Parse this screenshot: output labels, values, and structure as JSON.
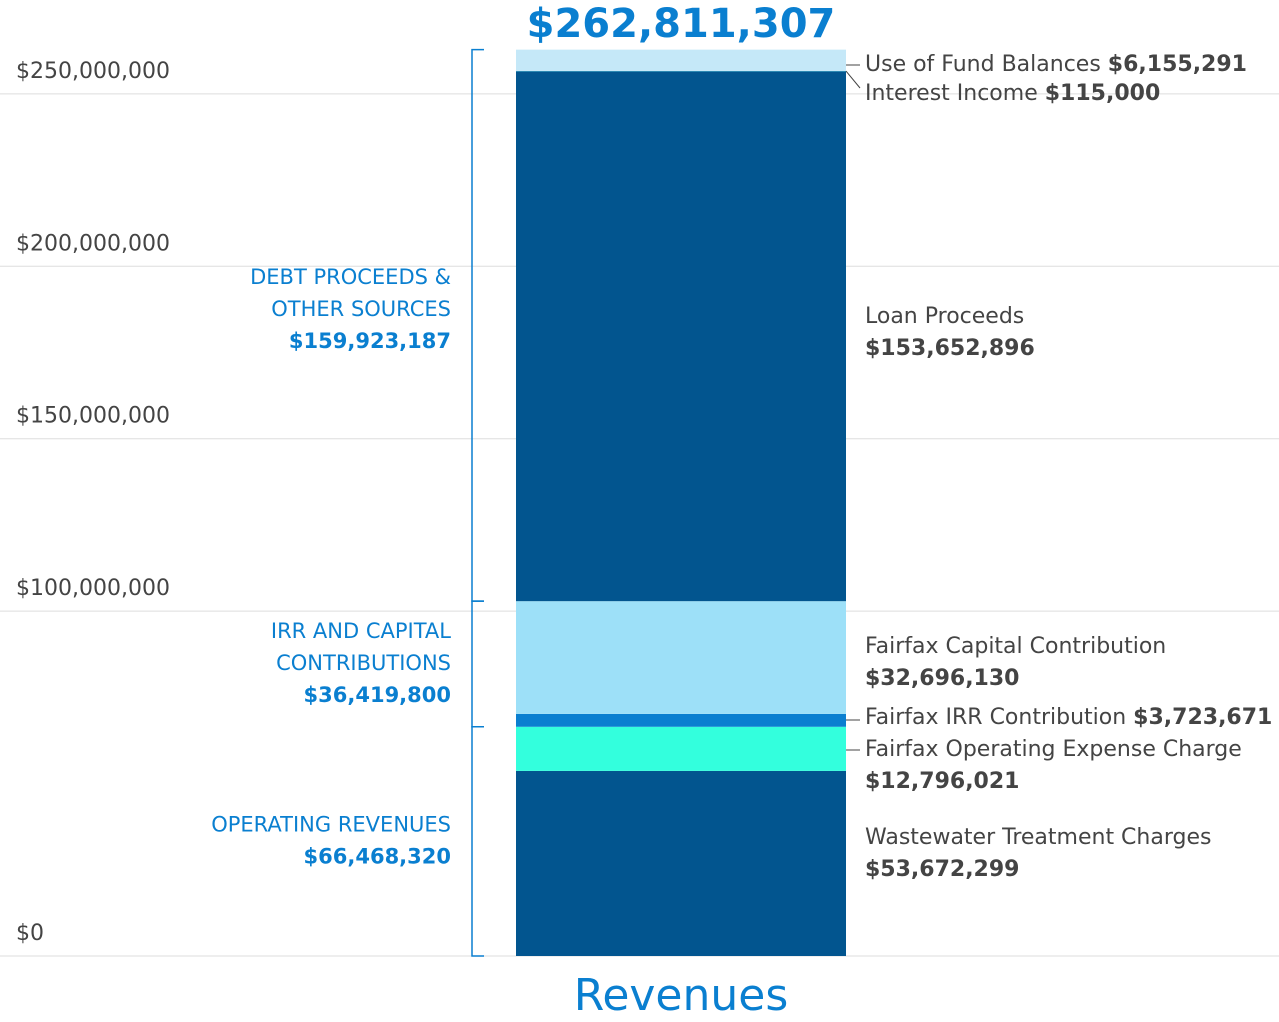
{
  "chart_data": {
    "type": "stacked_bar",
    "total_label": "$262,811,307",
    "categories": [
      "Revenues"
    ],
    "ylim": [
      0,
      263000000
    ],
    "yticks": [
      {
        "value": 0,
        "label": "$0"
      },
      {
        "value": 100000000,
        "label": "$100,000,000"
      },
      {
        "value": 150000000,
        "label": "$150,000,000"
      },
      {
        "value": 200000000,
        "label": "$200,000,000"
      },
      {
        "value": 250000000,
        "label": "$250,000,000"
      }
    ],
    "grid": true,
    "series": [
      {
        "name": "Wastewater Treatment Charges",
        "color": "#02558f",
        "values": [
          53672299
        ],
        "value_labels": [
          "$53,672,299"
        ]
      },
      {
        "name": "Fairfax Operating Expense Charge",
        "color": "#33ffdd",
        "values": [
          12796021
        ],
        "value_labels": [
          "$12,796,021"
        ]
      },
      {
        "name": "Fairfax IRR Contribution",
        "color": "#0a7fd0",
        "values": [
          3723671
        ],
        "value_labels": [
          "$3,723,671"
        ]
      },
      {
        "name": "Fairfax Capital Contribution",
        "color": "#9de0f8",
        "values": [
          32696130
        ],
        "value_labels": [
          "$32,696,130"
        ]
      },
      {
        "name": "Loan Proceeds",
        "color": "#02558f",
        "values": [
          153652896
        ],
        "value_labels": [
          "$153,652,896"
        ]
      },
      {
        "name": "Interest Income",
        "color": "#2bc6e0",
        "values": [
          115000
        ],
        "value_labels": [
          "$115,000"
        ]
      },
      {
        "name": "Use of Fund Balances",
        "color": "#c5e8f8",
        "values": [
          6155291
        ],
        "value_labels": [
          "$6,155,291"
        ]
      }
    ],
    "groups": [
      {
        "lines": [
          "OPERATING REVENUES"
        ],
        "value_label": "$66,468,320"
      },
      {
        "lines": [
          "IRR AND CAPITAL",
          "CONTRIBUTIONS"
        ],
        "value_label": "$36,419,800"
      },
      {
        "lines": [
          "DEBT PROCEEDS &",
          "OTHER SOURCES"
        ],
        "value_label": "$159,923,187"
      }
    ]
  }
}
